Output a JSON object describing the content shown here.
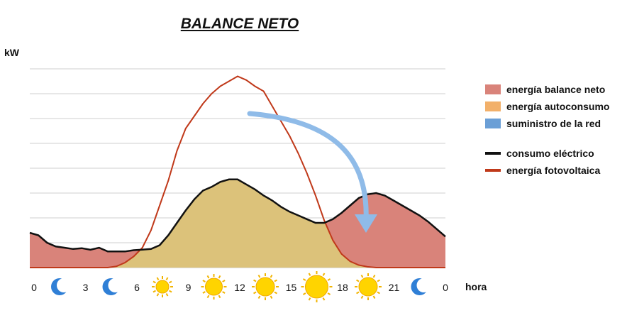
{
  "chart_data": {
    "type": "area",
    "title": "BALANCE NETO",
    "ylabel": "kW",
    "xlabel": "hora",
    "xlim": [
      0,
      24
    ],
    "ylim": [
      0,
      8
    ],
    "grid": true,
    "legend_position": "right",
    "x_ticks": [
      "0",
      "3",
      "6",
      "9",
      "12",
      "15",
      "18",
      "21",
      "0"
    ],
    "x_tick_icons": [
      "moon-icon",
      "moon-icon",
      "sun-icon",
      "sun-icon",
      "sun-icon",
      "sun-icon",
      "sun-icon",
      "moon-icon"
    ],
    "legend": [
      {
        "label": "energía balance neto",
        "kind": "area",
        "color": "#d9837a"
      },
      {
        "label": "energía autoconsumo",
        "kind": "area",
        "color": "#f2b06a"
      },
      {
        "label": "suministro de la red",
        "kind": "area",
        "color": "#6b9fd6"
      },
      {
        "label": "consumo eléctrico",
        "kind": "line",
        "color": "#111111"
      },
      {
        "label": "energía fotovoltaica",
        "kind": "line",
        "color": "#c0391a"
      }
    ],
    "series": [
      {
        "name": "consumo eléctrico",
        "x": [
          0,
          0.5,
          1,
          1.5,
          2,
          2.5,
          3,
          3.5,
          4,
          4.5,
          5,
          5.5,
          6,
          6.5,
          7,
          7.5,
          8,
          8.5,
          9,
          9.5,
          10,
          10.5,
          11,
          11.5,
          12,
          12.5,
          13,
          13.5,
          14,
          14.5,
          15,
          15.5,
          16,
          16.5,
          17,
          17.5,
          18,
          18.5,
          19,
          19.5,
          20,
          20.5,
          21,
          21.5,
          22,
          22.5,
          23,
          23.5,
          24
        ],
        "y": [
          1.4,
          1.3,
          1.0,
          0.85,
          0.8,
          0.75,
          0.78,
          0.72,
          0.8,
          0.65,
          0.65,
          0.65,
          0.7,
          0.72,
          0.75,
          0.9,
          1.3,
          1.8,
          2.3,
          2.75,
          3.1,
          3.25,
          3.45,
          3.55,
          3.55,
          3.35,
          3.15,
          2.9,
          2.7,
          2.45,
          2.25,
          2.1,
          1.95,
          1.8,
          1.8,
          1.95,
          2.2,
          2.5,
          2.8,
          2.95,
          3.0,
          2.9,
          2.7,
          2.5,
          2.3,
          2.1,
          1.85,
          1.55,
          1.25
        ]
      },
      {
        "name": "energía fotovoltaica",
        "x": [
          0,
          4.5,
          5,
          5.5,
          6,
          6.5,
          7,
          7.5,
          8,
          8.5,
          9,
          9.5,
          10,
          10.5,
          11,
          11.5,
          12,
          12.5,
          13,
          13.5,
          14,
          14.5,
          15,
          15.5,
          16,
          16.5,
          17,
          17.5,
          18,
          18.5,
          19,
          19.5,
          20,
          24
        ],
        "y": [
          0,
          0,
          0.05,
          0.2,
          0.45,
          0.8,
          1.5,
          2.5,
          3.5,
          4.7,
          5.6,
          6.1,
          6.6,
          7.0,
          7.3,
          7.5,
          7.7,
          7.55,
          7.3,
          7.1,
          6.5,
          5.9,
          5.3,
          4.6,
          3.8,
          2.9,
          1.9,
          1.1,
          0.55,
          0.25,
          0.1,
          0.03,
          0,
          0
        ]
      }
    ]
  }
}
